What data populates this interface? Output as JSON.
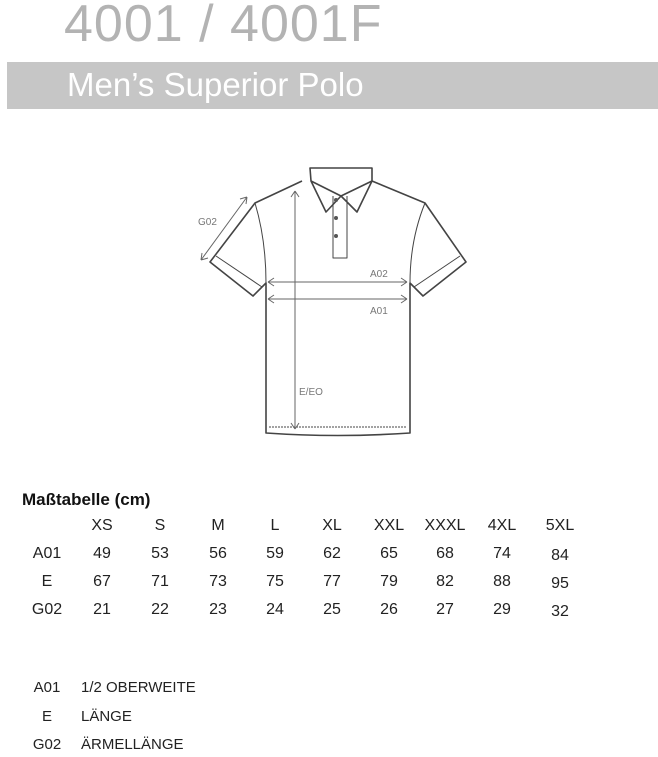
{
  "header": {
    "title": "4001 / 4001F",
    "subtitle": "Men’s Superior Polo"
  },
  "diagram": {
    "labels": {
      "g02": "G02",
      "a02": "A02",
      "a01": "A01",
      "e": "E/EO"
    }
  },
  "table": {
    "title": "Maßtabelle (cm)",
    "columns": [
      "XS",
      "S",
      "M",
      "L",
      "XL",
      "XXL",
      "XXXL",
      "4XL",
      "5XL"
    ],
    "rows": [
      {
        "code": "A01",
        "values": [
          "49",
          "53",
          "56",
          "59",
          "62",
          "65",
          "68",
          "74",
          "84"
        ]
      },
      {
        "code": "E",
        "values": [
          "67",
          "71",
          "73",
          "75",
          "77",
          "79",
          "82",
          "88",
          "95"
        ]
      },
      {
        "code": "G02",
        "values": [
          "21",
          "22",
          "23",
          "24",
          "25",
          "26",
          "27",
          "29",
          "32"
        ]
      }
    ]
  },
  "legend": [
    {
      "code": "A01",
      "text": "1/2 OBERWEITE"
    },
    {
      "code": "E",
      "text": "LÄNGE"
    },
    {
      "code": "G02",
      "text": "ÄRMELLÄNGE"
    }
  ]
}
